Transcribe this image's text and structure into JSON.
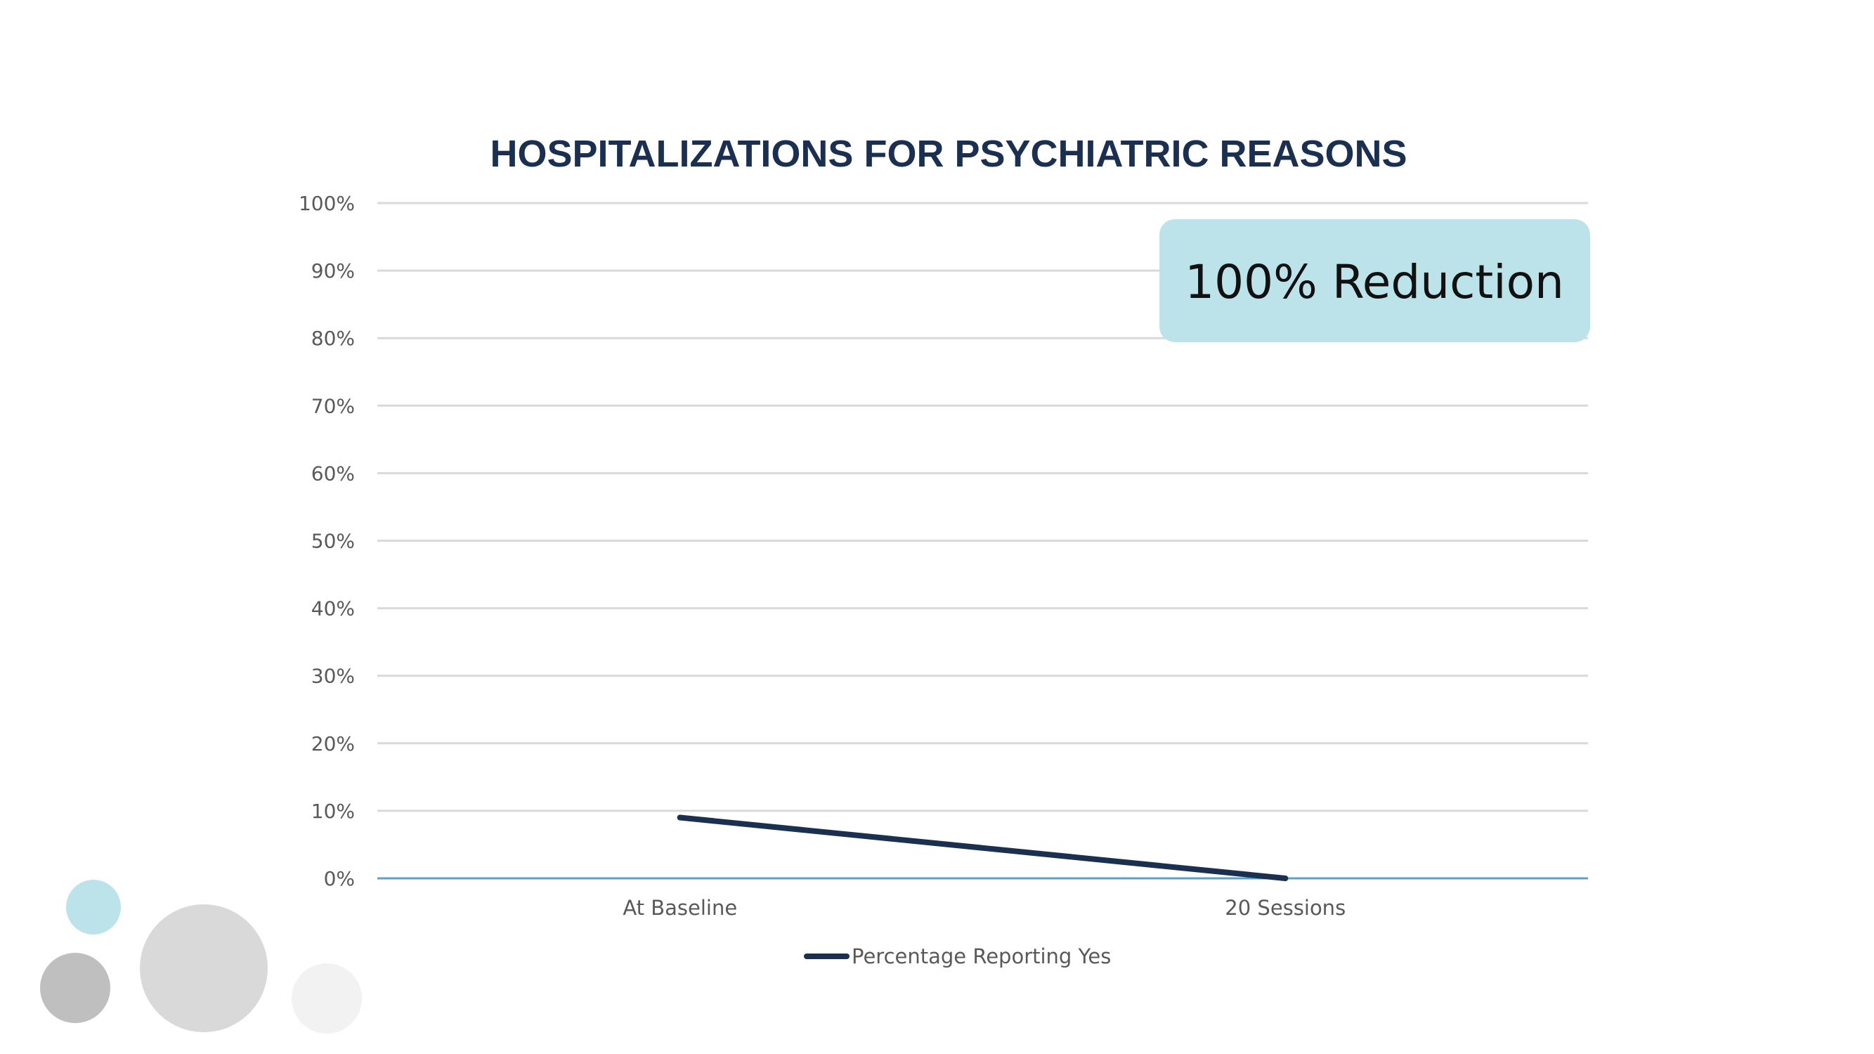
{
  "chart_data": {
    "type": "line",
    "title": "HOSPITALIZATIONS FOR PSYCHIATRIC REASONS",
    "categories": [
      "At Baseline",
      "20 Sessions"
    ],
    "series": [
      {
        "name": "Percentage Reporting Yes",
        "values": [
          9,
          0
        ],
        "color": "#1b3050"
      }
    ],
    "yticks": [
      "0%",
      "10%",
      "20%",
      "30%",
      "40%",
      "50%",
      "60%",
      "70%",
      "80%",
      "90%",
      "100%"
    ],
    "ylim": [
      0,
      100
    ],
    "grid": true,
    "legend": "bottom",
    "annotation": "100% Reduction"
  },
  "colors": {
    "title": "#1b3050",
    "gridline": "#d9d9d9",
    "axis": "#5ba3c9",
    "callout_bg": "#bde3ea",
    "dot_light_blue": "#bde3ea",
    "dot_dark_gray": "#bfbfbf",
    "dot_mid_gray": "#d9d9d9",
    "dot_light_gray": "#f2f2f2"
  }
}
